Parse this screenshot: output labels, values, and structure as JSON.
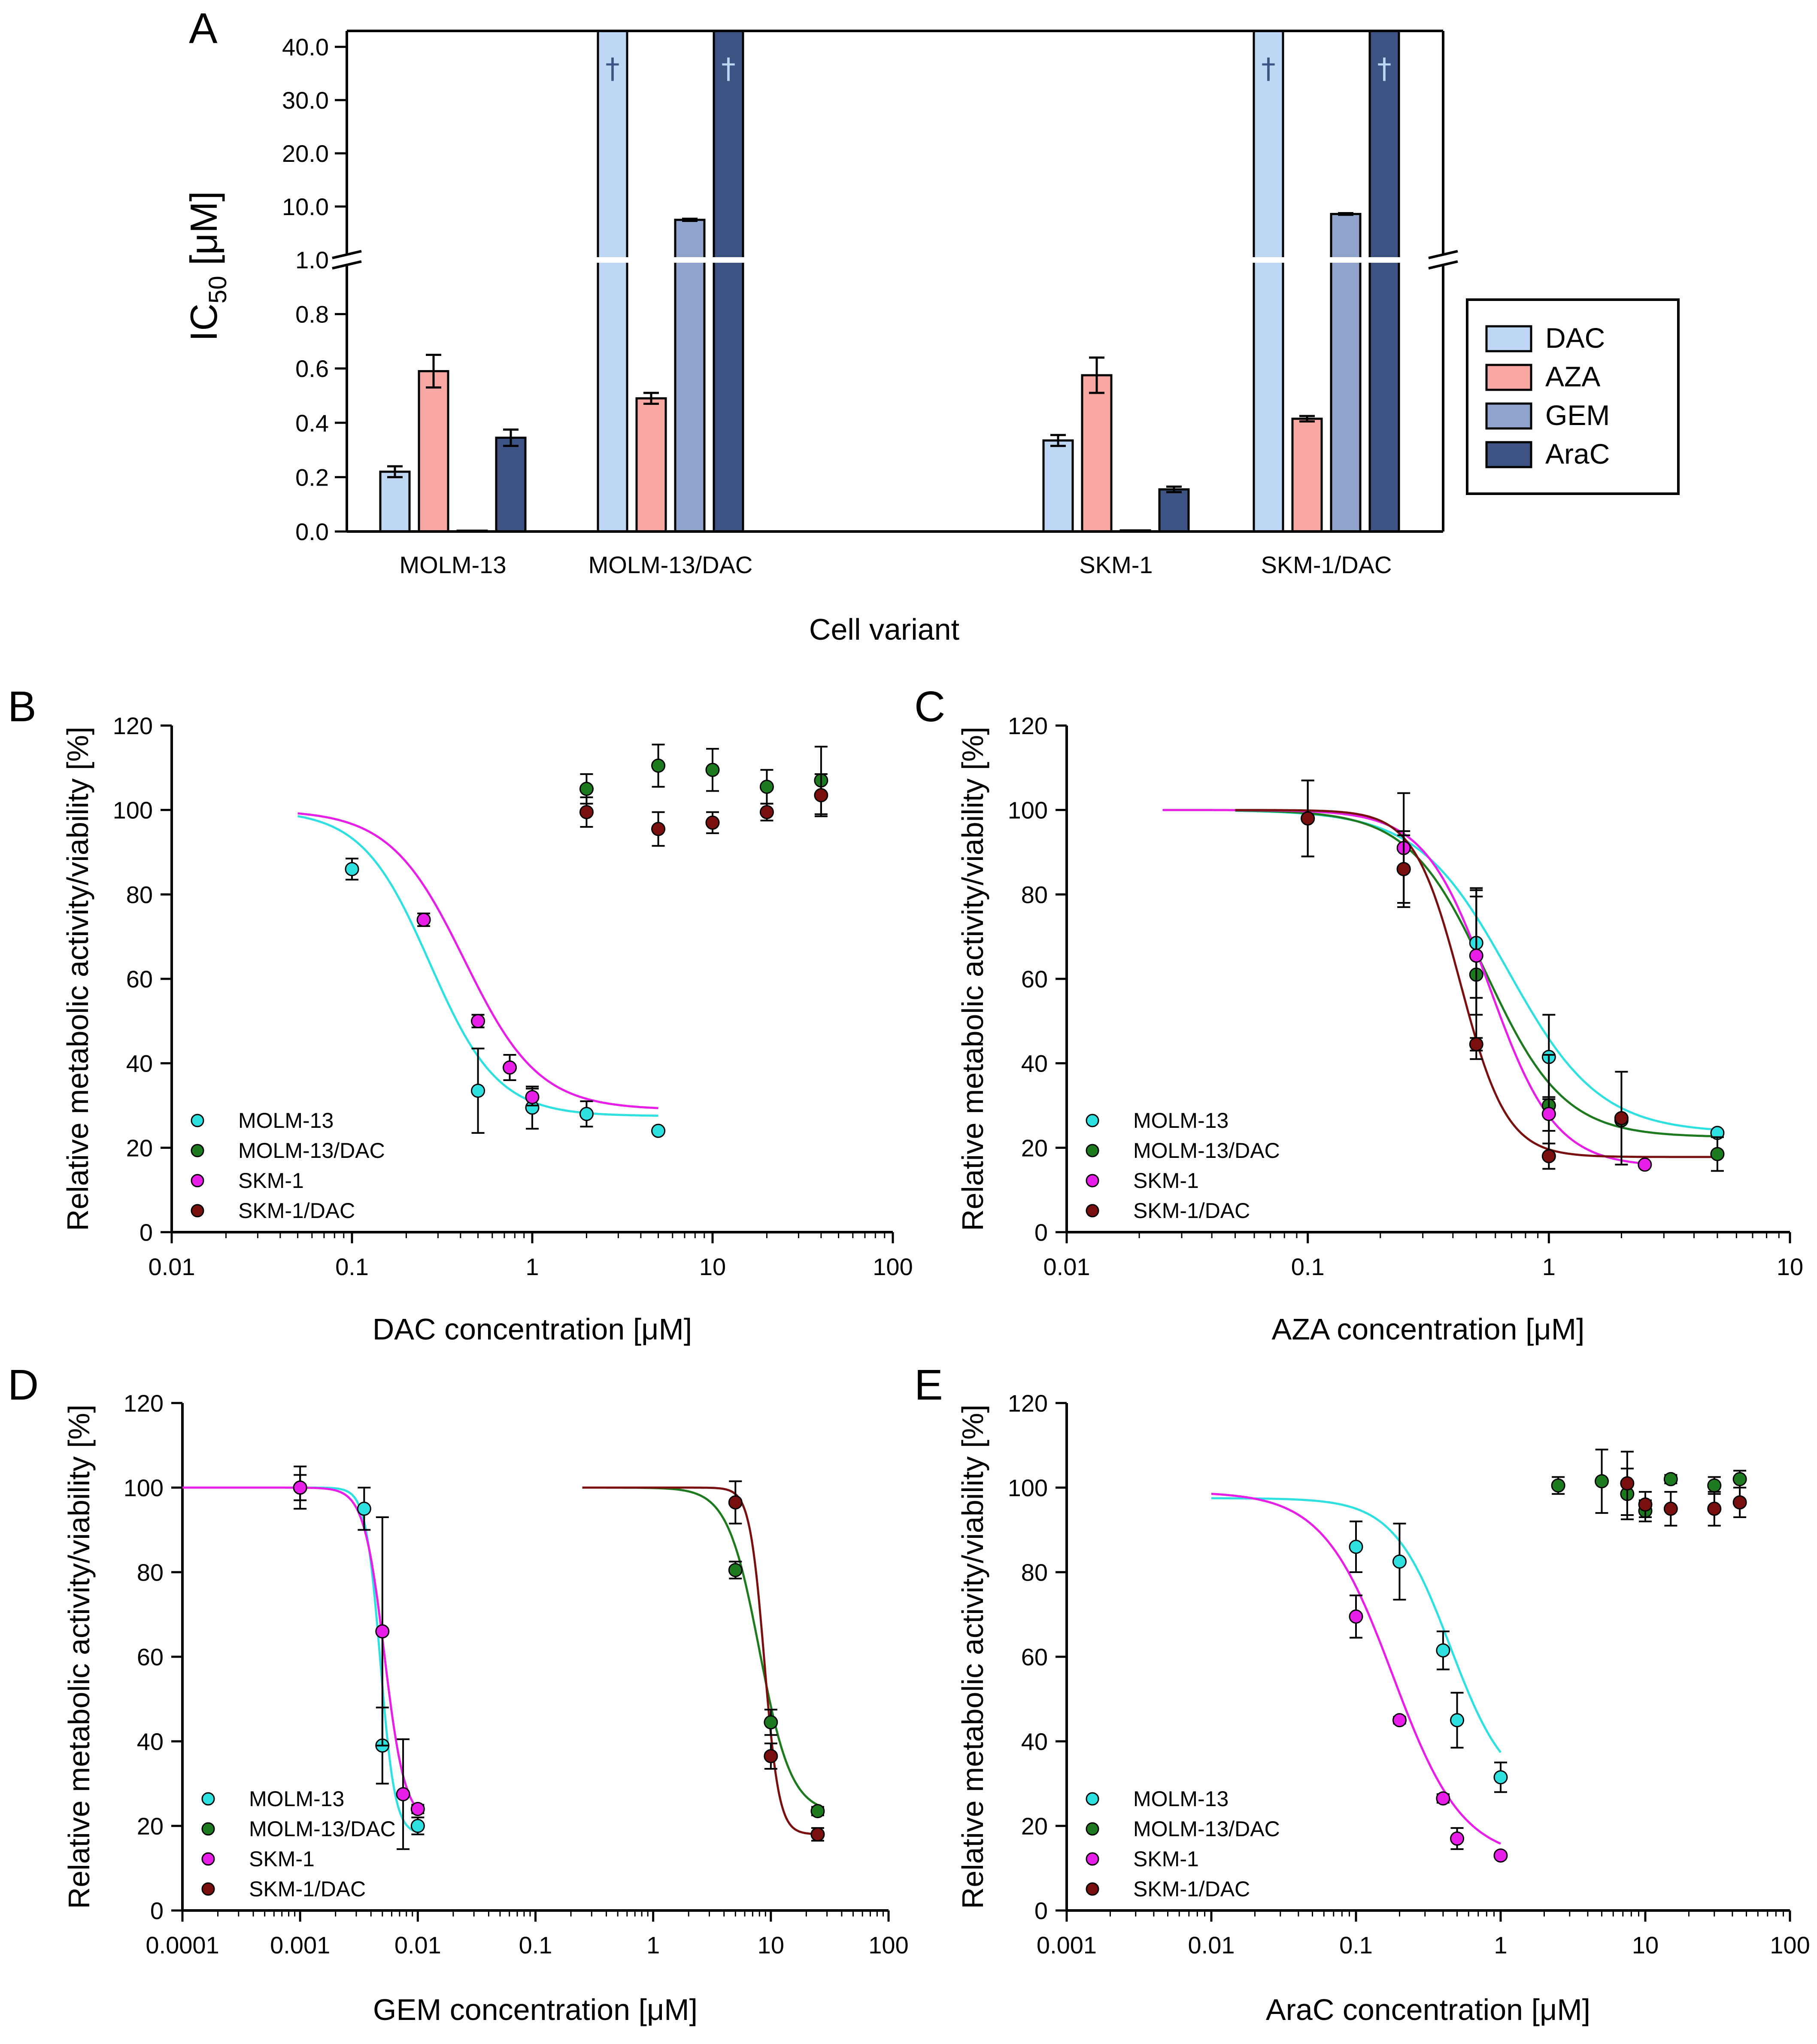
{
  "colors": {
    "DAC": "#bdd7f5",
    "AZA": "#f8a7a3",
    "GEM": "#8fa3cd",
    "AraC": "#3c5383",
    "MOLM-13": "#2fe0e0",
    "MOLM-13/DAC": "#1e7a1e",
    "SKM-1": "#e81ee8",
    "SKM-1/DAC": "#7a0f0f"
  },
  "chart_data": [
    {
      "panel": "A",
      "type": "bar",
      "ylabel_main": "IC",
      "ylabel_sub": "50",
      "ylabel_unit": "[μM]",
      "xlabel": "Cell variant",
      "categories": [
        "MOLM-13",
        "MOLM-13/DAC",
        "SKM-1",
        "SKM-1/DAC"
      ],
      "yticks_lower": [
        "0.0",
        "0.2",
        "0.4",
        "0.6",
        "0.8",
        "1.0"
      ],
      "yticks_upper": [
        "10.0",
        "20.0",
        "30.0",
        "40.0"
      ],
      "ylim_lower": [
        0,
        1.0
      ],
      "ylim_upper": [
        0,
        43
      ],
      "dagger": "†",
      "series": [
        {
          "name": "DAC",
          "values": [
            0.22,
            null,
            0.335,
            null
          ],
          "errors": [
            0.02,
            null,
            0.02,
            null
          ],
          "offscale": [
            false,
            true,
            false,
            true
          ]
        },
        {
          "name": "AZA",
          "values": [
            0.59,
            0.49,
            0.575,
            0.415
          ],
          "errors": [
            0.06,
            0.02,
            0.065,
            0.01
          ],
          "offscale": [
            false,
            false,
            false,
            false
          ]
        },
        {
          "name": "GEM",
          "values": [
            0.003,
            7.5,
            0.004,
            8.6
          ],
          "errors": [
            0,
            0.2,
            0,
            0.15
          ],
          "offscale": [
            false,
            false,
            false,
            false
          ]
        },
        {
          "name": "AraC",
          "values": [
            0.345,
            null,
            0.155,
            null
          ],
          "errors": [
            0.03,
            null,
            0.01,
            null
          ],
          "offscale": [
            false,
            true,
            false,
            true
          ]
        }
      ]
    },
    {
      "panel": "B",
      "type": "scatter",
      "xlabel": "DAC concentration [μM]",
      "ylabel": "Relative metabolic activity/viability [%]",
      "xlim": [
        0.01,
        100
      ],
      "ylim": [
        0,
        120
      ],
      "xticks": [
        "0.01",
        "0.1",
        "1",
        "10",
        "100"
      ],
      "yticks": [
        "0",
        "20",
        "40",
        "60",
        "80",
        "100",
        "120"
      ],
      "series": [
        {
          "name": "MOLM-13",
          "x": [
            0.1,
            0.5,
            1,
            2,
            5
          ],
          "y": [
            86,
            33.5,
            29.5,
            28,
            24
          ],
          "err": [
            2.5,
            10,
            5,
            3,
            0
          ],
          "fit": {
            "top": 100,
            "bottom": 27.5,
            "ic50": 0.27,
            "hill": 2.3,
            "xmin": 0.05,
            "xmax": 5
          }
        },
        {
          "name": "MOLM-13/DAC",
          "x": [
            2,
            5,
            10,
            20,
            40
          ],
          "y": [
            105,
            110.5,
            109.5,
            105.5,
            107
          ],
          "err": [
            3.5,
            5,
            5,
            4,
            8
          ],
          "fit": null
        },
        {
          "name": "SKM-1",
          "x": [
            0.25,
            0.5,
            0.75,
            1
          ],
          "y": [
            74,
            50,
            39,
            32
          ],
          "err": [
            1.5,
            1.5,
            3,
            2
          ],
          "fit": {
            "top": 100,
            "bottom": 29,
            "ic50": 0.42,
            "hill": 2.1,
            "xmin": 0.05,
            "xmax": 5
          }
        },
        {
          "name": "SKM-1/DAC",
          "x": [
            2,
            5,
            10,
            20,
            40
          ],
          "y": [
            99.5,
            95.5,
            97,
            99.5,
            103.5
          ],
          "err": [
            3.5,
            4,
            2.5,
            2,
            5
          ],
          "fit": null
        }
      ]
    },
    {
      "panel": "C",
      "type": "scatter",
      "xlabel": "AZA concentration [μM]",
      "ylabel": "Relative metabolic activity/viability [%]",
      "xlim": [
        0.01,
        10
      ],
      "ylim": [
        0,
        120
      ],
      "xticks": [
        "0.01",
        "0.1",
        "1",
        "10"
      ],
      "yticks": [
        "0",
        "20",
        "40",
        "60",
        "80",
        "100",
        "120"
      ],
      "series": [
        {
          "name": "MOLM-13",
          "x": [
            0.5,
            1,
            5
          ],
          "y": [
            68.5,
            41.5,
            23.5
          ],
          "err": [
            13,
            10,
            0
          ],
          "fit": {
            "top": 100,
            "bottom": 23.5,
            "ic50": 0.68,
            "hill": 2.3,
            "xmin": 0.05,
            "xmax": 5
          }
        },
        {
          "name": "MOLM-13/DAC",
          "x": [
            0.1,
            0.25,
            0.5,
            1,
            2,
            5
          ],
          "y": [
            98,
            86,
            61,
            30,
            26.5,
            18.5
          ],
          "err": [
            9,
            9,
            20,
            12,
            0,
            4
          ],
          "fit": {
            "top": 100,
            "bottom": 22.5,
            "ic50": 0.55,
            "hill": 2.7,
            "xmin": 0.05,
            "xmax": 5
          }
        },
        {
          "name": "SKM-1",
          "x": [
            0.25,
            0.5,
            1,
            2.5
          ],
          "y": [
            91,
            65.5,
            28,
            16
          ],
          "err": [
            13,
            14,
            4,
            0
          ],
          "fit": {
            "top": 100,
            "bottom": 15.5,
            "ic50": 0.57,
            "hill": 3.2,
            "xmin": 0.025,
            "xmax": 2.5
          }
        },
        {
          "name": "SKM-1/DAC",
          "x": [
            0.1,
            0.25,
            0.5,
            1,
            2
          ],
          "y": [
            98,
            86,
            44.5,
            18,
            27
          ],
          "err": [
            9,
            8,
            1.5,
            3,
            11
          ],
          "fit": {
            "top": 100,
            "bottom": 17.8,
            "ic50": 0.43,
            "hill": 4.5,
            "xmin": 0.05,
            "xmax": 5
          }
        }
      ]
    },
    {
      "panel": "D",
      "type": "scatter",
      "xlabel": "GEM concentration [μM]",
      "ylabel": "Relative metabolic activity/viability [%]",
      "xlim": [
        0.0001,
        100
      ],
      "ylim": [
        0,
        120
      ],
      "xticks": [
        "0.0001",
        "0.001",
        "0.01",
        "0.1",
        "1",
        "10",
        "100"
      ],
      "yticks": [
        "0",
        "20",
        "40",
        "60",
        "80",
        "100",
        "120"
      ],
      "series": [
        {
          "name": "MOLM-13",
          "x": [
            0.001,
            0.0035,
            0.005,
            0.01
          ],
          "y": [
            100,
            95,
            39,
            20
          ],
          "err": [
            5,
            5,
            9,
            2
          ],
          "fit": {
            "top": 100,
            "bottom": 18,
            "ic50": 0.0048,
            "hill": 7,
            "xmin": 0.0001,
            "xmax": 0.01
          }
        },
        {
          "name": "MOLM-13/DAC",
          "x": [
            5,
            10,
            25
          ],
          "y": [
            80.5,
            44.5,
            23.5
          ],
          "err": [
            2,
            3,
            1
          ],
          "fit": {
            "top": 100,
            "bottom": 23,
            "ic50": 8,
            "hill": 3.2,
            "xmin": 0.25,
            "xmax": 25
          }
        },
        {
          "name": "SKM-1",
          "x": [
            0.001,
            0.005,
            0.0075,
            0.01
          ],
          "y": [
            100,
            66,
            27.5,
            24
          ],
          "err": [
            3,
            27,
            13,
            1
          ],
          "fit": {
            "top": 100,
            "bottom": 21,
            "ic50": 0.0052,
            "hill": 5,
            "xmin": 0.0001,
            "xmax": 0.01
          }
        },
        {
          "name": "SKM-1/DAC",
          "x": [
            5,
            10,
            25
          ],
          "y": [
            96.5,
            36.5,
            18
          ],
          "err": [
            5,
            3,
            1.5
          ],
          "fit": {
            "top": 100,
            "bottom": 18,
            "ic50": 8.8,
            "hill": 7,
            "xmin": 0.25,
            "xmax": 25
          }
        }
      ]
    },
    {
      "panel": "E",
      "type": "scatter",
      "xlabel": "AraC concentration [μM]",
      "ylabel": "Relative metabolic activity/viability [%]",
      "xlim": [
        0.001,
        100
      ],
      "ylim": [
        0,
        120
      ],
      "xticks": [
        "0.001",
        "0.01",
        "0.1",
        "1",
        "10",
        "100"
      ],
      "yticks": [
        "0",
        "20",
        "40",
        "60",
        "80",
        "100",
        "120"
      ],
      "series": [
        {
          "name": "MOLM-13",
          "x": [
            0.1,
            0.2,
            0.4,
            0.5,
            1
          ],
          "y": [
            86,
            82.5,
            61.5,
            45,
            31.5
          ],
          "err": [
            6,
            9,
            4.5,
            6.5,
            3.5
          ],
          "fit": {
            "top": 97.5,
            "bottom": 27,
            "ic50": 0.45,
            "hill": 2.2,
            "xmin": 0.01,
            "xmax": 1
          }
        },
        {
          "name": "MOLM-13/DAC",
          "x": [
            2.5,
            5,
            7.5,
            10,
            15,
            30,
            45
          ],
          "y": [
            100.5,
            101.5,
            98.5,
            94.5,
            102,
            100.5,
            102
          ],
          "err": [
            2,
            7.5,
            6,
            2.5,
            1,
            2,
            2
          ],
          "fit": null
        },
        {
          "name": "SKM-1",
          "x": [
            0.1,
            0.2,
            0.4,
            0.5,
            1
          ],
          "y": [
            69.5,
            45,
            26.5,
            17,
            13
          ],
          "err": [
            5,
            0.8,
            1,
            2.5,
            0.5
          ],
          "fit": {
            "top": 99,
            "bottom": 12,
            "ic50": 0.18,
            "hill": 1.8,
            "xmin": 0.01,
            "xmax": 1
          }
        },
        {
          "name": "SKM-1/DAC",
          "x": [
            7.5,
            10,
            15,
            30,
            45
          ],
          "y": [
            101,
            96,
            95,
            95,
            96.5
          ],
          "err": [
            7.5,
            3,
            4,
            4,
            3.5
          ],
          "fit": null
        }
      ]
    }
  ]
}
